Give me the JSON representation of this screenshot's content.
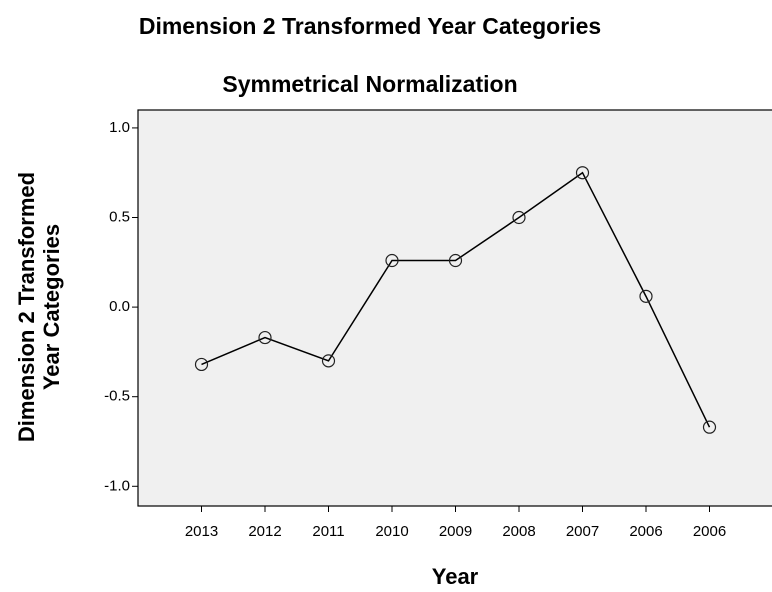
{
  "chart_data": {
    "type": "line",
    "title": "Dimension 2 Transformed Year Categories",
    "subtitle": "Symmetrical Normalization",
    "x_label": "Year",
    "y_label": [
      "Dimension 2 Transformed",
      "Year Categories"
    ],
    "categories": [
      "2013",
      "2012",
      "2011",
      "2010",
      "2009",
      "2008",
      "2007",
      "2006",
      "2006"
    ],
    "series": [
      {
        "color": "#000000",
        "values": [
          -0.32,
          -0.17,
          -0.3,
          0.26,
          0.26,
          0.5,
          0.75,
          0.06,
          -0.67
        ]
      }
    ],
    "ylim": [
      -1.11,
      1.1
    ],
    "yticks": [
      {
        "value": 1.0,
        "label": "1.0"
      },
      {
        "value": 0.5,
        "label": "0.5"
      },
      {
        "value": 0,
        "label": "0.0"
      },
      {
        "value": -0.5,
        "label": "-0.5"
      },
      {
        "value": -1.0,
        "label": "-1.0"
      }
    ],
    "background": "#f0f0f0"
  }
}
